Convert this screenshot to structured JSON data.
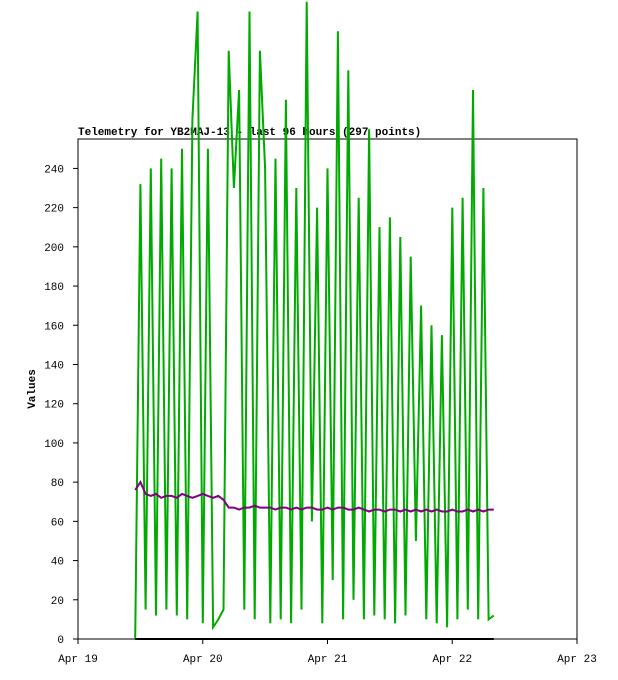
{
  "chart_data": {
    "type": "line",
    "title": "Telemetry for YB2MAJ-13 - last 96 hours (297 points)",
    "y_label": "Values",
    "x": [
      11,
      12,
      13,
      14,
      15,
      16,
      17,
      18,
      19,
      20,
      21,
      22,
      23,
      24,
      25,
      26,
      27,
      28,
      29,
      30,
      31,
      32,
      33,
      34,
      35,
      36,
      37,
      38,
      39,
      40,
      41,
      42,
      43,
      44,
      45,
      46,
      47,
      48,
      49,
      50,
      51,
      52,
      53,
      54,
      55,
      56,
      57,
      58,
      59,
      60,
      61,
      62,
      63,
      64,
      65,
      66,
      67,
      68,
      69,
      70,
      71,
      72,
      73,
      74,
      75,
      76,
      77,
      78,
      79,
      80
    ],
    "series": [
      {
        "color": "#00aa00",
        "values": [
          0,
          232,
          15,
          240,
          12,
          245,
          15,
          240,
          12,
          250,
          10,
          265,
          320,
          8,
          250,
          6,
          10,
          15,
          300,
          230,
          280,
          15,
          320,
          10,
          300,
          240,
          8,
          245,
          10,
          275,
          8,
          230,
          15,
          325,
          60,
          220,
          8,
          240,
          30,
          310,
          10,
          290,
          20,
          225,
          10,
          260,
          12,
          210,
          10,
          215,
          8,
          205,
          12,
          195,
          50,
          170,
          10,
          160,
          8,
          155,
          6,
          220,
          10,
          225,
          15,
          280,
          10,
          230,
          10,
          12
        ]
      },
      {
        "color": "#800080",
        "values": [
          76,
          80,
          74,
          73,
          74,
          72,
          73,
          73,
          72,
          74,
          73,
          72,
          73,
          74,
          73,
          72,
          73,
          71,
          67,
          67,
          66,
          67,
          67,
          68,
          67,
          67,
          67,
          66,
          67,
          67,
          66,
          67,
          66,
          67,
          67,
          66,
          66,
          67,
          66,
          67,
          67,
          66,
          66,
          67,
          66,
          65,
          66,
          66,
          65,
          66,
          66,
          65,
          66,
          65,
          66,
          65,
          66,
          65,
          66,
          65,
          65,
          66,
          65,
          65,
          66,
          65,
          66,
          65,
          66,
          66
        ]
      },
      {
        "color": "#000000",
        "values": [
          0,
          0,
          0,
          0,
          0,
          0,
          0,
          0,
          0,
          0,
          0,
          0,
          0,
          0,
          0,
          0,
          0,
          0,
          0,
          0,
          0,
          0,
          0,
          0,
          0,
          0,
          0,
          0,
          0,
          0,
          0,
          0,
          0,
          0,
          0,
          0,
          0,
          0,
          0,
          0,
          0,
          0,
          0,
          0,
          0,
          0,
          0,
          0,
          0,
          0,
          0,
          0,
          0,
          0,
          0,
          0,
          0,
          0,
          0,
          0,
          0,
          0,
          0,
          0,
          0,
          0,
          0,
          0,
          0,
          0
        ]
      }
    ],
    "xlim": [
      0,
      96
    ],
    "xticks": [
      {
        "value": 0,
        "label": "Apr 19"
      },
      {
        "value": 24,
        "label": "Apr 20"
      },
      {
        "value": 48,
        "label": "Apr 21"
      },
      {
        "value": 72,
        "label": "Apr 22"
      },
      {
        "value": 96,
        "label": "Apr 23"
      }
    ],
    "ylim": [
      0,
      255
    ],
    "yticks": [
      0,
      20,
      40,
      60,
      80,
      100,
      120,
      140,
      160,
      180,
      200,
      220,
      240
    ],
    "grid": false
  }
}
